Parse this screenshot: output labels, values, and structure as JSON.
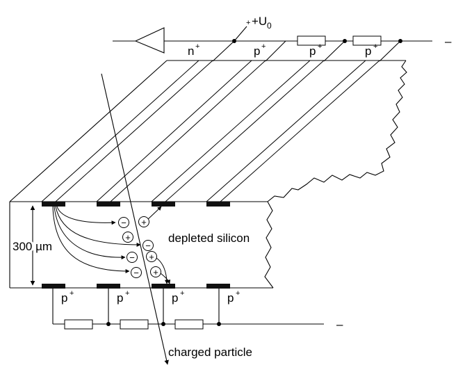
{
  "labels": {
    "voltage": "+U",
    "voltage_sub": "0",
    "top_strip_n": "n",
    "plus_sup": "+",
    "top_strip_p": "p",
    "bottom_strip_p": "p",
    "thickness": "300 µm",
    "depleted": "depleted silicon",
    "particle": "charged particle",
    "end_dash": "–",
    "electron_sign": "−",
    "hole_sign": "+"
  }
}
